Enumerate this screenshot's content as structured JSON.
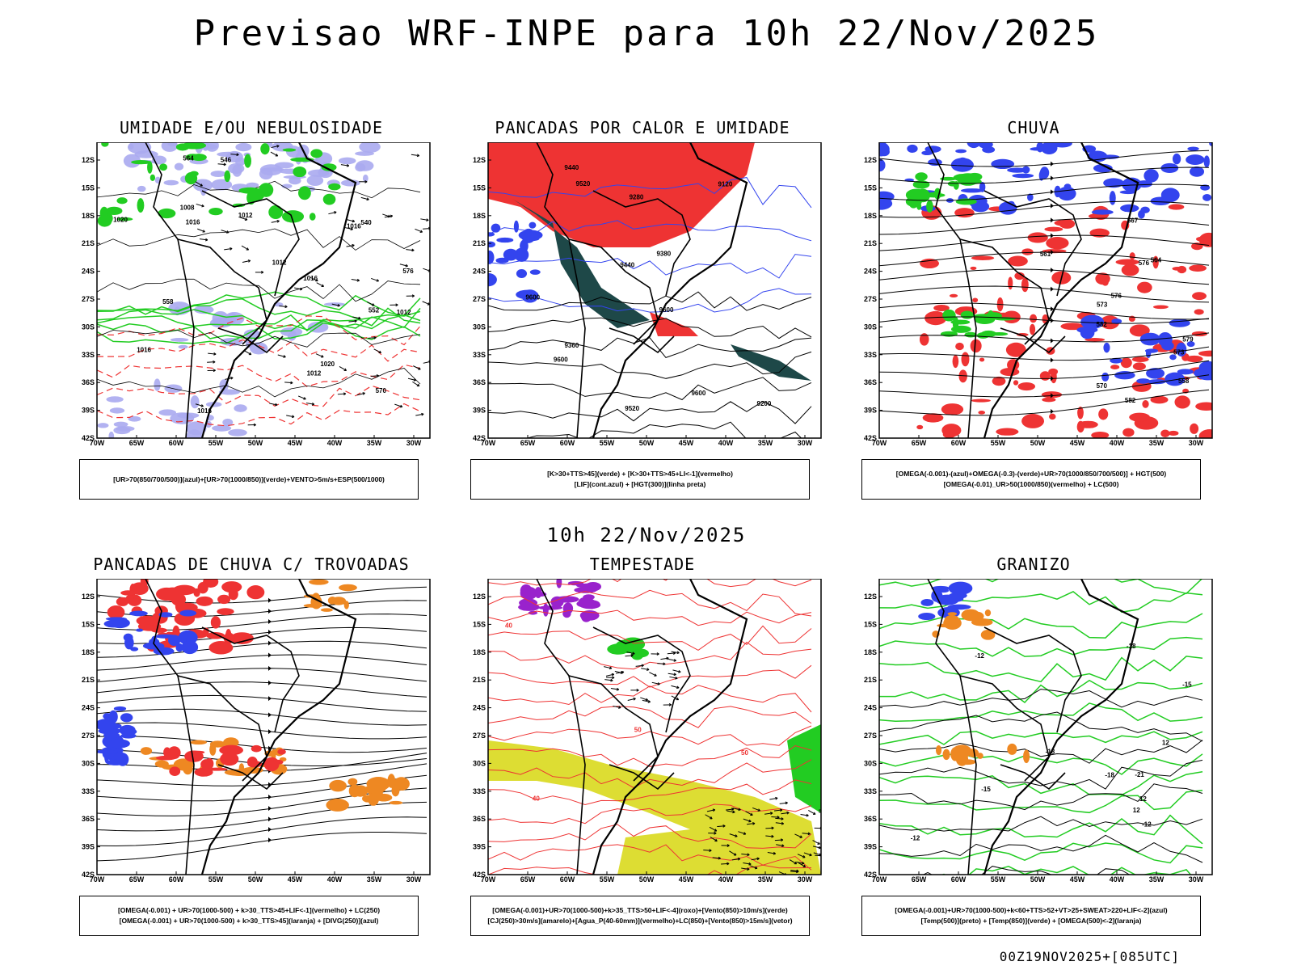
{
  "title": "Previsao WRF-INPE  para 10h 22/Nov/2025",
  "subtitle": "10h 22/Nov/2025",
  "footer": "00Z19NOV2025+[085UTC]",
  "axes": {
    "lat": [
      "12S",
      "15S",
      "18S",
      "21S",
      "24S",
      "27S",
      "30S",
      "33S",
      "36S",
      "39S",
      "42S"
    ],
    "lon": [
      "70W",
      "65W",
      "60W",
      "55W",
      "50W",
      "45W",
      "40W",
      "35W",
      "30W"
    ]
  },
  "panels": [
    {
      "title": "UMIDADE E/OU NEBULOSIDADE",
      "legend": [
        "[UR>70(850/700/500)](azul)+[UR>70(1000/850)](verde)+VENTO>5m/s+ESP(500/1000)"
      ],
      "labels": [
        "1012",
        "1012",
        "1016",
        "1012",
        "1008",
        "1016",
        "1012",
        "570",
        "576",
        "1016",
        "1020",
        "564",
        "1016",
        "552",
        "546",
        "558",
        "540",
        "1020",
        "1016"
      ]
    },
    {
      "title": "PANCADAS POR CALOR E UMIDADE",
      "legend": [
        "[K>30+TTS>45](verde) + [K>30+TTS>45+LI<-1](vermelho)",
        "[LIF](cont.azul) + [HGT(300)](linha preta)"
      ],
      "labels": [
        "9600",
        "9600",
        "9600",
        "9600",
        "9520",
        "9440",
        "9520",
        "9440",
        "9360",
        "9380",
        "9280",
        "9200",
        "9120"
      ]
    },
    {
      "title": "CHUVA",
      "legend": [
        "[OMEGA(-0.001)-(azul)+OMEGA(-0.3)-(verde)+UR>70(1000/850/700/500)] + HGT(500)",
        "[OMEGA(-0.01)_UR>50(1000/850)(vermelho) + LC(500)"
      ],
      "labels": [
        "582",
        "579",
        "576",
        "573",
        "570",
        "567",
        "564",
        "561",
        "558",
        "582",
        "576",
        "573"
      ]
    },
    {
      "title": "PANCADAS DE CHUVA C/ TROVOADAS",
      "legend": [
        "[OMEGA(-0.001) + UR>70(1000-500) + k>30_TTS>45+LIF<-1](vermelho) + LC(250)",
        "[OMEGA(-0.001) + UR>70(1000-500) + k>30_TTS>45](laranja) + [DIVG(250)](azul)"
      ],
      "labels": []
    },
    {
      "title": "TEMPESTADE",
      "legend": [
        "[OMEGA(-0.001)+UR>70(1000-500)+k>35_TTS>50+LIF<-4](roxo)+[Vento(850)>10m/s](verde)",
        "[CJ(250)>30m/s](amarelo)+[Agua_P(40-60mm)](vermelho)+LC(850)+[Vento(850)>15m/s](vetor)"
      ],
      "labels": [
        "50",
        "40",
        "50",
        "40"
      ]
    },
    {
      "title": "GRANIZO",
      "legend": [
        "[OMEGA(-0.001)+UR>70(1000-500)+k<60+TTS>52+VT>25+SWEAT>220+LIF<-2](azul)",
        "[Temp(500)](preto) + [Temp(850)](verde) + [OMEGA(500)<-2](laranja)"
      ],
      "labels": [
        "-12",
        "-12",
        "-12",
        "-15",
        "-15",
        "-18",
        "-18",
        "-18",
        "-21",
        "12",
        "12",
        "12"
      ]
    }
  ],
  "colors": {
    "blue": "#3344ee",
    "green": "#22cc22",
    "red": "#ee3333",
    "orange": "#ee8822",
    "purple": "#9922cc",
    "yellow": "#dddd33",
    "darkteal": "#1e4848",
    "lavender": "#aaaaf0"
  }
}
